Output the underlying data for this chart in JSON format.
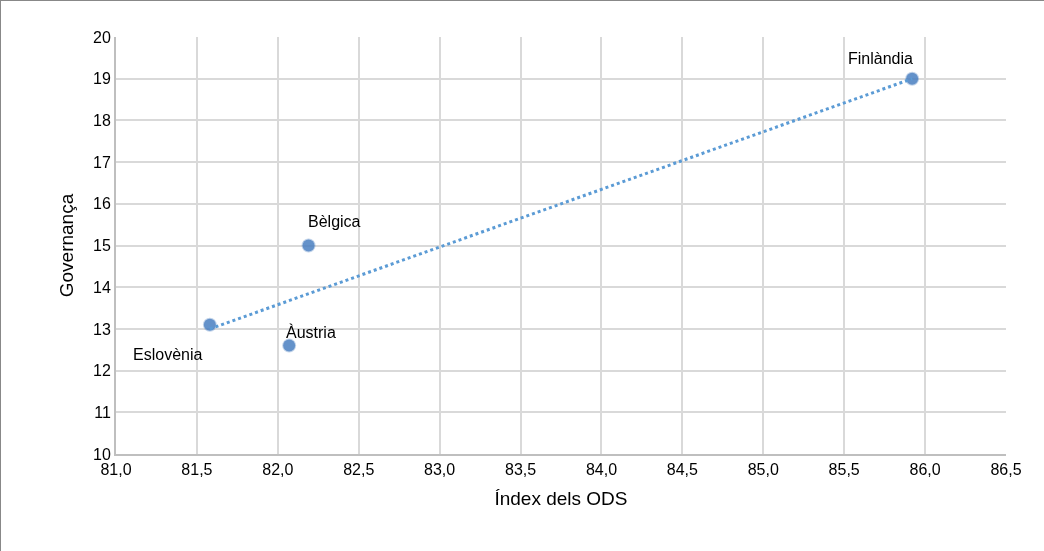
{
  "chart_data": {
    "type": "scatter",
    "xlabel": "Índex dels ODS",
    "ylabel": "Governança",
    "xlim": [
      81,
      86.5
    ],
    "xticks": [
      {
        "value": 81,
        "label": "81,0"
      },
      {
        "value": 81.5,
        "label": "81,5"
      },
      {
        "value": 82,
        "label": "82,0"
      },
      {
        "value": 82.5,
        "label": "82,5"
      },
      {
        "value": 83,
        "label": "83,0"
      },
      {
        "value": 83.5,
        "label": "83,5"
      },
      {
        "value": 84,
        "label": "84,0"
      },
      {
        "value": 84.5,
        "label": "84,5"
      },
      {
        "value": 85,
        "label": "85,0"
      },
      {
        "value": 85.5,
        "label": "85,5"
      },
      {
        "value": 86,
        "label": "86,0"
      },
      {
        "value": 86.5,
        "label": "86,5"
      }
    ],
    "ylim": [
      10,
      20
    ],
    "yticks": [
      10,
      11,
      12,
      13,
      14,
      15,
      16,
      17,
      18,
      19,
      20
    ],
    "grid": true,
    "marker": "circle",
    "series": [
      {
        "type": "scatter",
        "color": "#4a7fc1",
        "x": [
          85.92,
          82.19,
          82.07,
          81.58
        ],
        "values": [
          19.0,
          15.0,
          12.6,
          13.1
        ]
      },
      {
        "type": "line",
        "color": "#5b9bd5",
        "line_style": "dotted",
        "marker": "none",
        "x": [
          81.58,
          85.92
        ],
        "values": [
          13.0,
          19.0
        ]
      }
    ],
    "annotations": [
      {
        "text": "Finlàndia",
        "x": 85.92,
        "y": 19.0
      },
      {
        "text": "Bèlgica",
        "x": 82.19,
        "y": 15.0
      },
      {
        "text": "Àustria",
        "x": 82.07,
        "y": 12.6
      },
      {
        "text": "Eslovènia",
        "x": 81.58,
        "y": 13.1
      }
    ]
  }
}
